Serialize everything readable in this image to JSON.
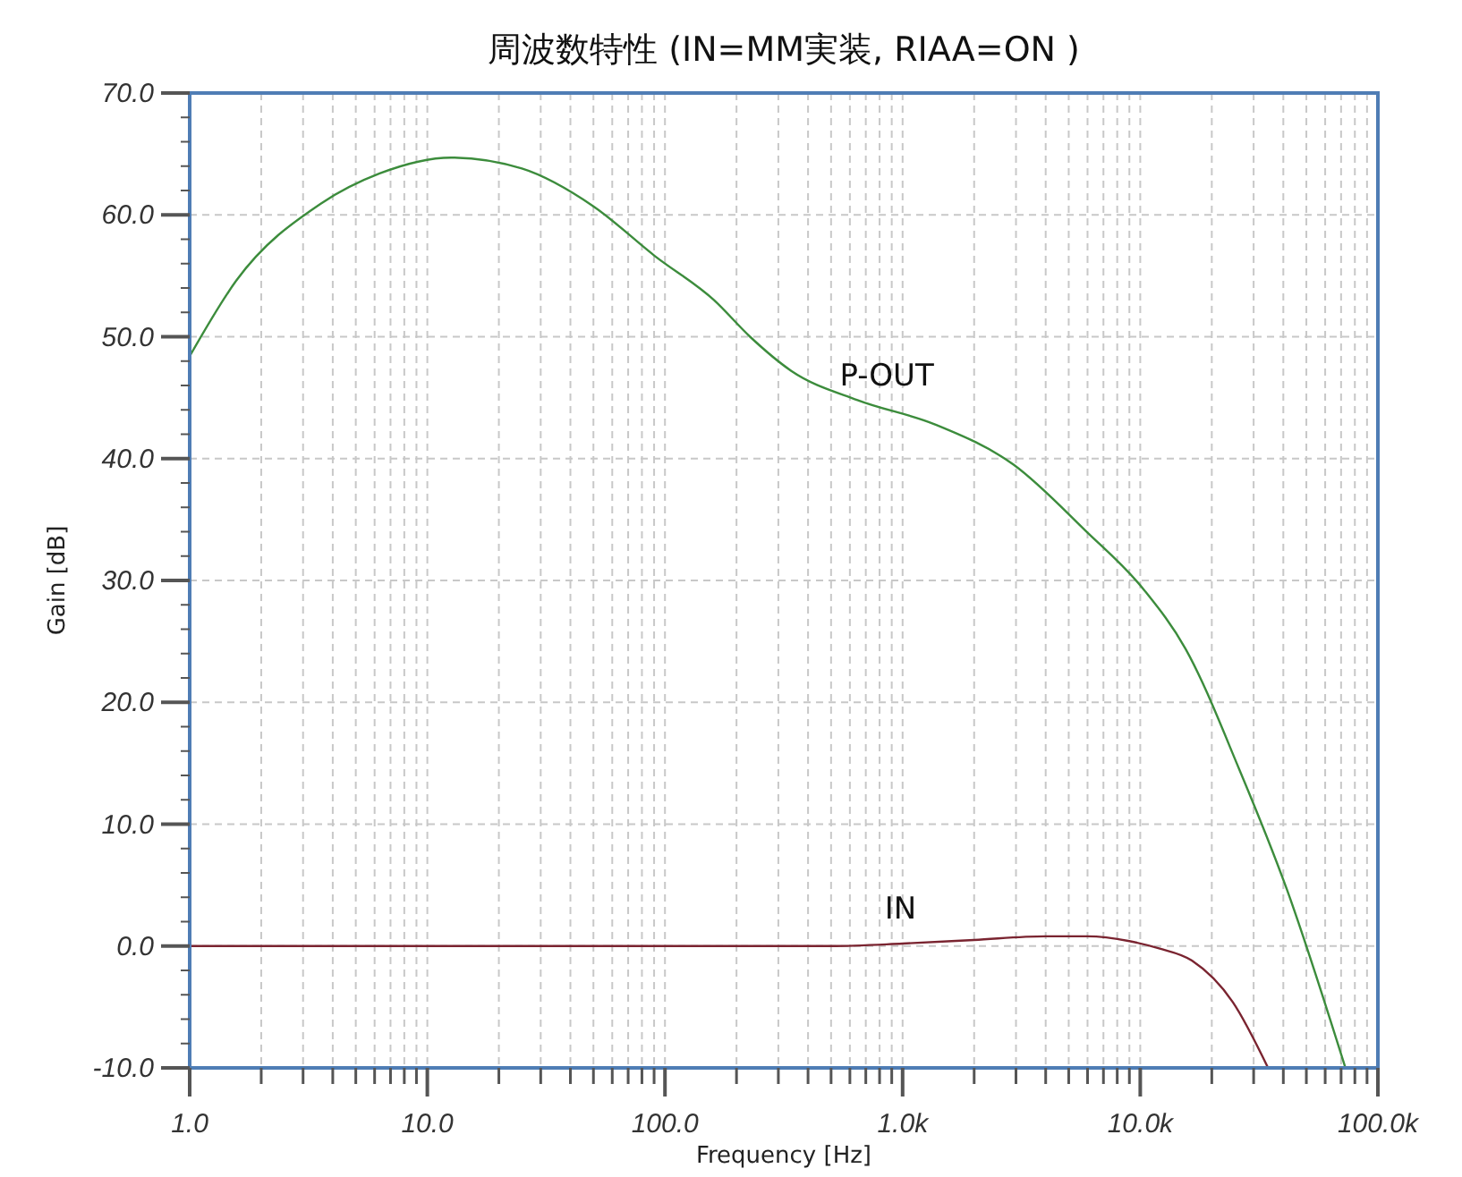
{
  "chart_data": {
    "type": "line",
    "title": "周波数特性 (IN=MM実装, RIAA=ON )",
    "xlabel": "Frequency [Hz]",
    "ylabel": "Gain [dB]",
    "log": "x",
    "grid": true,
    "xlim": [
      1,
      100000
    ],
    "ylim": [
      -10,
      70
    ],
    "xticks": [
      {
        "value": 1,
        "label": "1.0"
      },
      {
        "value": 2,
        "label": null
      },
      {
        "value": 3,
        "label": null
      },
      {
        "value": 4,
        "label": null
      },
      {
        "value": 5,
        "label": null
      },
      {
        "value": 6,
        "label": null
      },
      {
        "value": 7,
        "label": null
      },
      {
        "value": 8,
        "label": null
      },
      {
        "value": 9,
        "label": null
      },
      {
        "value": 10,
        "label": "10.0"
      },
      {
        "value": 20,
        "label": null
      },
      {
        "value": 30,
        "label": null
      },
      {
        "value": 40,
        "label": null
      },
      {
        "value": 50,
        "label": null
      },
      {
        "value": 60,
        "label": null
      },
      {
        "value": 70,
        "label": null
      },
      {
        "value": 80,
        "label": null
      },
      {
        "value": 90,
        "label": null
      },
      {
        "value": 100,
        "label": "100.0"
      },
      {
        "value": 200,
        "label": null
      },
      {
        "value": 300,
        "label": null
      },
      {
        "value": 400,
        "label": null
      },
      {
        "value": 500,
        "label": null
      },
      {
        "value": 600,
        "label": null
      },
      {
        "value": 700,
        "label": null
      },
      {
        "value": 800,
        "label": null
      },
      {
        "value": 900,
        "label": null
      },
      {
        "value": 1000,
        "label": "1.0k"
      },
      {
        "value": 2000,
        "label": null
      },
      {
        "value": 3000,
        "label": null
      },
      {
        "value": 4000,
        "label": null
      },
      {
        "value": 5000,
        "label": null
      },
      {
        "value": 6000,
        "label": null
      },
      {
        "value": 7000,
        "label": null
      },
      {
        "value": 8000,
        "label": null
      },
      {
        "value": 9000,
        "label": null
      },
      {
        "value": 10000,
        "label": "10.0k"
      },
      {
        "value": 20000,
        "label": null
      },
      {
        "value": 30000,
        "label": null
      },
      {
        "value": 40000,
        "label": null
      },
      {
        "value": 50000,
        "label": null
      },
      {
        "value": 60000,
        "label": null
      },
      {
        "value": 70000,
        "label": null
      },
      {
        "value": 80000,
        "label": null
      },
      {
        "value": 90000,
        "label": null
      },
      {
        "value": 100000,
        "label": "100.0k"
      }
    ],
    "yticks": [
      {
        "value": -10,
        "label": "-10.0"
      },
      {
        "value": 0,
        "label": "0.0"
      },
      {
        "value": 10,
        "label": "10.0"
      },
      {
        "value": 20,
        "label": "20.0"
      },
      {
        "value": 30,
        "label": "30.0"
      },
      {
        "value": 40,
        "label": "40.0"
      },
      {
        "value": 50,
        "label": "50.0"
      },
      {
        "value": 60,
        "label": "60.0"
      },
      {
        "value": 70,
        "label": "70.0"
      }
    ],
    "series": [
      {
        "name": "P-OUT",
        "color": "#3c8c3c",
        "x": [
          1,
          1.57,
          3.55,
          6.3,
          12.6,
          25,
          50,
          91,
          161,
          228,
          340,
          646,
          1370,
          2930,
          5870,
          10400,
          15500,
          26100,
          41300,
          73000
        ],
        "values": [
          48.4,
          54.6,
          60.9,
          63.4,
          64.7,
          63.8,
          60.7,
          56.6,
          53,
          50,
          47.2,
          44.8,
          42.8,
          39.5,
          34.1,
          29.2,
          24.4,
          14.5,
          4.7,
          -10
        ]
      },
      {
        "name": "IN",
        "color": "#7a2430",
        "x": [
          1,
          100,
          500,
          1000,
          2000,
          4000,
          6000,
          9000,
          12000,
          16500,
          24500,
          34500
        ],
        "values": [
          0,
          0,
          0,
          0.2,
          0.5,
          0.8,
          0.8,
          0.4,
          -0.2,
          -1.2,
          -4.6,
          -10
        ]
      }
    ]
  }
}
